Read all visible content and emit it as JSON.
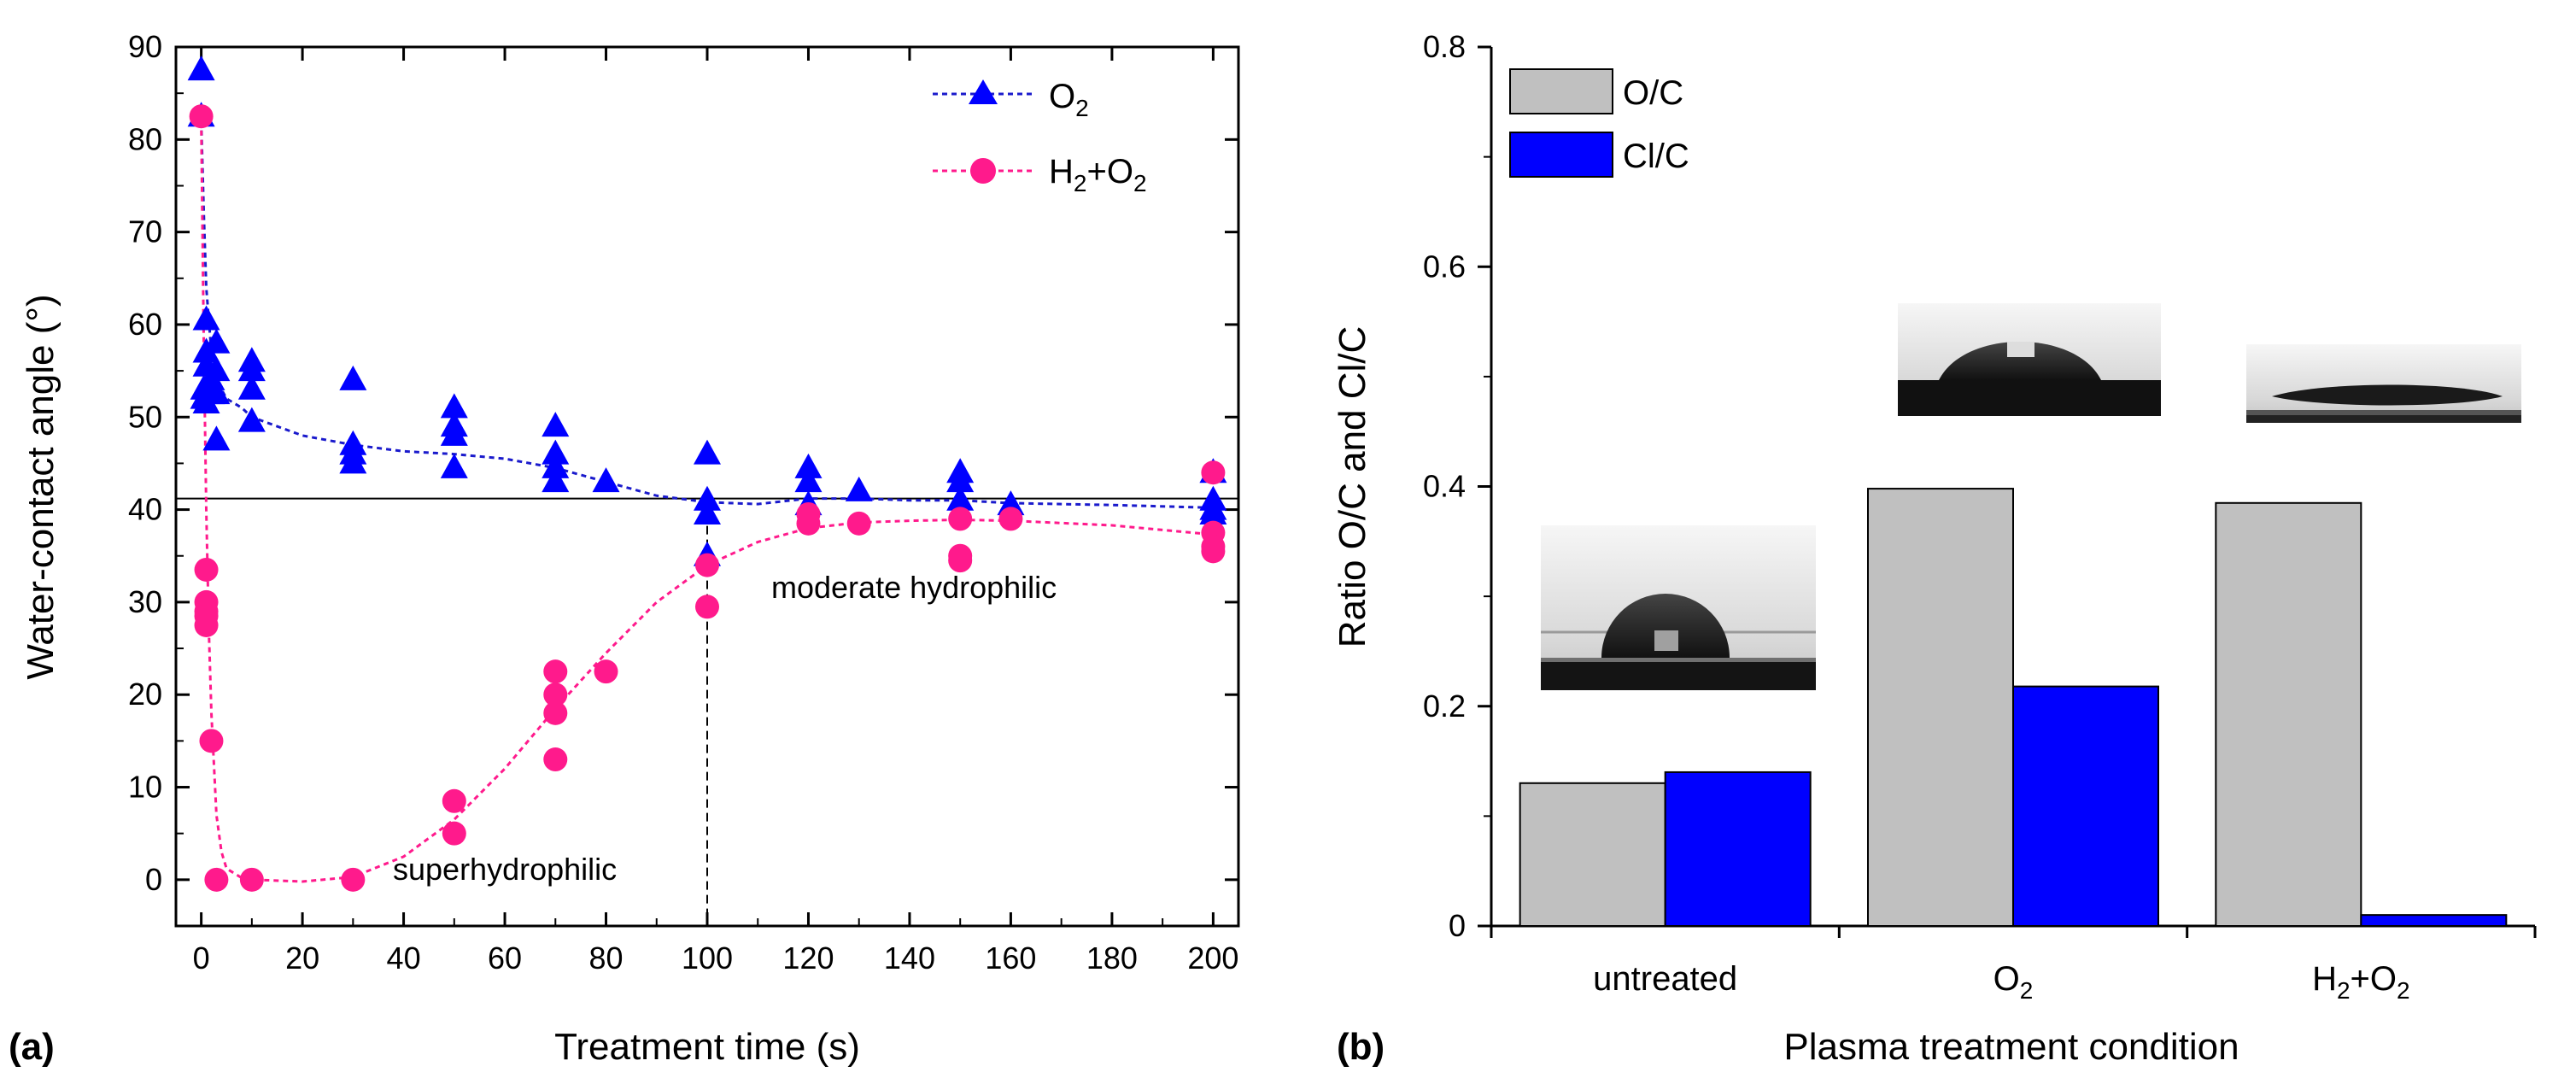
{
  "panels": {
    "a_label": "(a)",
    "b_label": "(b)"
  },
  "chart_data": [
    {
      "type": "scatter",
      "panel": "(a)",
      "xlabel": "Treatment time (s)",
      "ylabel": "Water-contact angle (°)",
      "xlim": [
        -5,
        205
      ],
      "ylim": [
        -5,
        90
      ],
      "xticks": [
        0,
        20,
        40,
        60,
        80,
        100,
        120,
        140,
        160,
        180,
        200
      ],
      "yticks": [
        0,
        10,
        20,
        30,
        40,
        50,
        60,
        70,
        80,
        90
      ],
      "reference_line_y": 41.2,
      "reference_line_x": 100,
      "legend_position": "top-right",
      "annotations": [
        "moderate hydrophilic",
        "superhydrophilic"
      ],
      "colors": {
        "O2": "#0000ff",
        "O2_line": "#1a1acc",
        "H2O2": "#ff1a8c"
      },
      "series": [
        {
          "name": "O2",
          "legend_main": "O",
          "legend_sub": "2",
          "marker": "triangle",
          "points": [
            [
              0,
              87.5
            ],
            [
              0,
              82.5
            ],
            [
              1,
              60.5
            ],
            [
              1,
              57
            ],
            [
              1,
              55.5
            ],
            [
              0.5,
              53
            ],
            [
              0.5,
              52
            ],
            [
              1,
              51.5
            ],
            [
              2,
              52.5
            ],
            [
              2,
              54
            ],
            [
              3,
              58
            ],
            [
              3,
              55
            ],
            [
              3,
              52.5
            ],
            [
              3,
              47.5
            ],
            [
              10,
              56
            ],
            [
              10,
              55
            ],
            [
              10,
              53
            ],
            [
              10,
              49.5
            ],
            [
              30,
              54
            ],
            [
              30,
              47
            ],
            [
              30,
              46
            ],
            [
              30,
              45
            ],
            [
              50,
              51
            ],
            [
              50,
              49
            ],
            [
              50,
              48
            ],
            [
              50,
              44.5
            ],
            [
              70,
              49
            ],
            [
              70,
              46
            ],
            [
              70,
              44.5
            ],
            [
              70,
              43
            ],
            [
              80,
              43
            ],
            [
              100,
              46
            ],
            [
              100,
              41
            ],
            [
              100,
              39.5
            ],
            [
              100,
              35
            ],
            [
              120,
              44.5
            ],
            [
              120,
              43
            ],
            [
              120,
              40.5
            ],
            [
              130,
              42
            ],
            [
              150,
              44
            ],
            [
              150,
              43
            ],
            [
              150,
              41
            ],
            [
              160,
              40.5
            ],
            [
              200,
              44
            ],
            [
              200,
              41
            ],
            [
              200,
              40
            ],
            [
              200,
              39.5
            ]
          ],
          "fit": [
            [
              0,
              82
            ],
            [
              0.5,
              72
            ],
            [
              1,
              64
            ],
            [
              2,
              57
            ],
            [
              3,
              54
            ],
            [
              5,
              52
            ],
            [
              8,
              51
            ],
            [
              10,
              50
            ],
            [
              20,
              48
            ],
            [
              30,
              47
            ],
            [
              40,
              46.3
            ],
            [
              50,
              46
            ],
            [
              60,
              45.5
            ],
            [
              70,
              44.5
            ],
            [
              80,
              43
            ],
            [
              90,
              41.5
            ],
            [
              100,
              40.8
            ],
            [
              110,
              40.6
            ],
            [
              120,
              41.2
            ],
            [
              130,
              41.2
            ],
            [
              140,
              41
            ],
            [
              150,
              41
            ],
            [
              160,
              40.7
            ],
            [
              180,
              40.5
            ],
            [
              200,
              40.2
            ]
          ]
        },
        {
          "name": "H2+O2",
          "legend_main": "H",
          "legend_sub": "2",
          "legend_rest": "+O",
          "legend_sub2": "2",
          "marker": "circle",
          "points": [
            [
              0,
              82.5
            ],
            [
              1,
              33.5
            ],
            [
              1,
              30
            ],
            [
              1,
              29
            ],
            [
              1,
              28.5
            ],
            [
              1,
              27.5
            ],
            [
              2,
              15
            ],
            [
              3,
              0
            ],
            [
              10,
              0
            ],
            [
              30,
              0
            ],
            [
              50,
              8.5
            ],
            [
              50,
              5
            ],
            [
              70,
              22.5
            ],
            [
              70,
              20
            ],
            [
              70,
              18
            ],
            [
              70,
              13
            ],
            [
              80,
              22.5
            ],
            [
              100,
              34
            ],
            [
              100,
              29.5
            ],
            [
              120,
              39.5
            ],
            [
              120,
              38.5
            ],
            [
              130,
              38.5
            ],
            [
              150,
              39
            ],
            [
              150,
              35
            ],
            [
              150,
              34.5
            ],
            [
              160,
              39
            ],
            [
              200,
              44
            ],
            [
              200,
              37.5
            ],
            [
              200,
              36
            ],
            [
              200,
              35.5
            ]
          ],
          "fit": [
            [
              0,
              82
            ],
            [
              0.5,
              58
            ],
            [
              1,
              40
            ],
            [
              1.5,
              27
            ],
            [
              2,
              18
            ],
            [
              3,
              7
            ],
            [
              4,
              3
            ],
            [
              5,
              1.2
            ],
            [
              8,
              0.2
            ],
            [
              10,
              0
            ],
            [
              20,
              -0.2
            ],
            [
              30,
              0.3
            ],
            [
              40,
              2.5
            ],
            [
              50,
              6.5
            ],
            [
              60,
              12
            ],
            [
              70,
              18.5
            ],
            [
              80,
              24.5
            ],
            [
              90,
              30
            ],
            [
              100,
              34
            ],
            [
              110,
              36.5
            ],
            [
              120,
              38
            ],
            [
              130,
              38.6
            ],
            [
              140,
              38.8
            ],
            [
              150,
              38.9
            ],
            [
              160,
              38.8
            ],
            [
              180,
              38.3
            ],
            [
              200,
              37.3
            ]
          ]
        }
      ]
    },
    {
      "type": "bar",
      "panel": "(b)",
      "xlabel": "Plasma treatment condition",
      "ylabel": "Ratio O/C and Cl/C",
      "ylim": [
        0,
        0.8
      ],
      "yticks": [
        "0",
        "0.2",
        "0.4",
        "0.6",
        "0.8"
      ],
      "categories": [
        "untreated",
        "O2",
        "H2+O2"
      ],
      "category_labels": [
        {
          "main": "untreated",
          "sub": "",
          "rest": "",
          "sub2": ""
        },
        {
          "main": "O",
          "sub": "2",
          "rest": "",
          "sub2": ""
        },
        {
          "main": "H",
          "sub": "2",
          "rest": "+O",
          "sub2": "2"
        }
      ],
      "legend_position": "top-left",
      "colors": {
        "O/C": "#c0c0c0",
        "Cl/C": "#0000ff"
      },
      "series": [
        {
          "name": "O/C",
          "values": [
            0.13,
            0.398,
            0.385
          ]
        },
        {
          "name": "Cl/C",
          "values": [
            0.14,
            0.218,
            0.01
          ]
        }
      ],
      "insets": [
        "droplet-photo-untreated",
        "droplet-photo-o2",
        "droplet-photo-h2o2"
      ]
    }
  ]
}
